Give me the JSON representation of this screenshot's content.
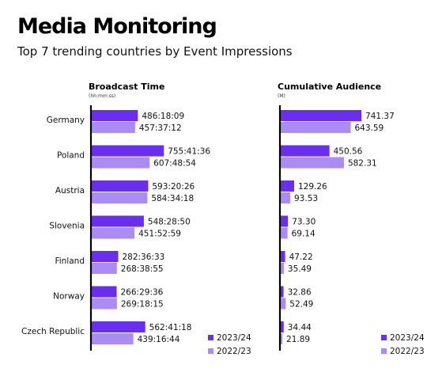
{
  "header": {
    "title": "Media Monitoring",
    "subtitle": "Top 7 trending countries by Event Impressions"
  },
  "chart_data": [
    {
      "type": "bar",
      "orientation": "horizontal",
      "title": "Broadcast Time",
      "unit_label": "(hh:mm:ss)",
      "categories": [
        "Germany",
        "Poland",
        "Austria",
        "Slovenia",
        "Finland",
        "Norway",
        "Czech Republic"
      ],
      "series": [
        {
          "name": "2023/24",
          "color": "#6a2ef0",
          "labels": [
            "486:18:09",
            "755:41:36",
            "593:20:26",
            "548:28:50",
            "282:36:33",
            "266:29:36",
            "562:41:18"
          ],
          "values": [
            486.3025,
            755.6933,
            593.3406,
            548.4806,
            282.6092,
            266.4933,
            562.6883
          ]
        },
        {
          "name": "2022/23",
          "color": "#a98cf6",
          "labels": [
            "457:37:12",
            "607:48:54",
            "584:34:18",
            "451:52:59",
            "268:38:55",
            "269:18:15",
            "439:16:44"
          ],
          "values": [
            457.62,
            607.815,
            584.5717,
            451.8831,
            268.6486,
            269.3042,
            439.2789
          ]
        }
      ],
      "xlim": [
        0,
        1000
      ],
      "legend": "bottom-right"
    },
    {
      "type": "bar",
      "orientation": "horizontal",
      "title": "Cumulative Audience",
      "unit_label": "(M)",
      "categories": [
        "Germany",
        "Poland",
        "Austria",
        "Slovenia",
        "Finland",
        "Norway",
        "Czech Republic"
      ],
      "series": [
        {
          "name": "2023/24",
          "color": "#6a2ef0",
          "labels": [
            "741.37",
            "450.56",
            "129.26",
            "73.30",
            "47.22",
            "32.86",
            "34.44"
          ],
          "values": [
            741.37,
            450.56,
            129.26,
            73.3,
            47.22,
            32.86,
            34.44
          ]
        },
        {
          "name": "2022/23",
          "color": "#a98cf6",
          "labels": [
            "643.59",
            "582.31",
            "93.53",
            "69.14",
            "35.49",
            "52.49",
            "21.89"
          ],
          "values": [
            643.59,
            582.31,
            93.53,
            69.14,
            35.49,
            52.49,
            21.89
          ]
        }
      ],
      "xlim": [
        0,
        1000
      ],
      "legend": "bottom-right"
    }
  ]
}
